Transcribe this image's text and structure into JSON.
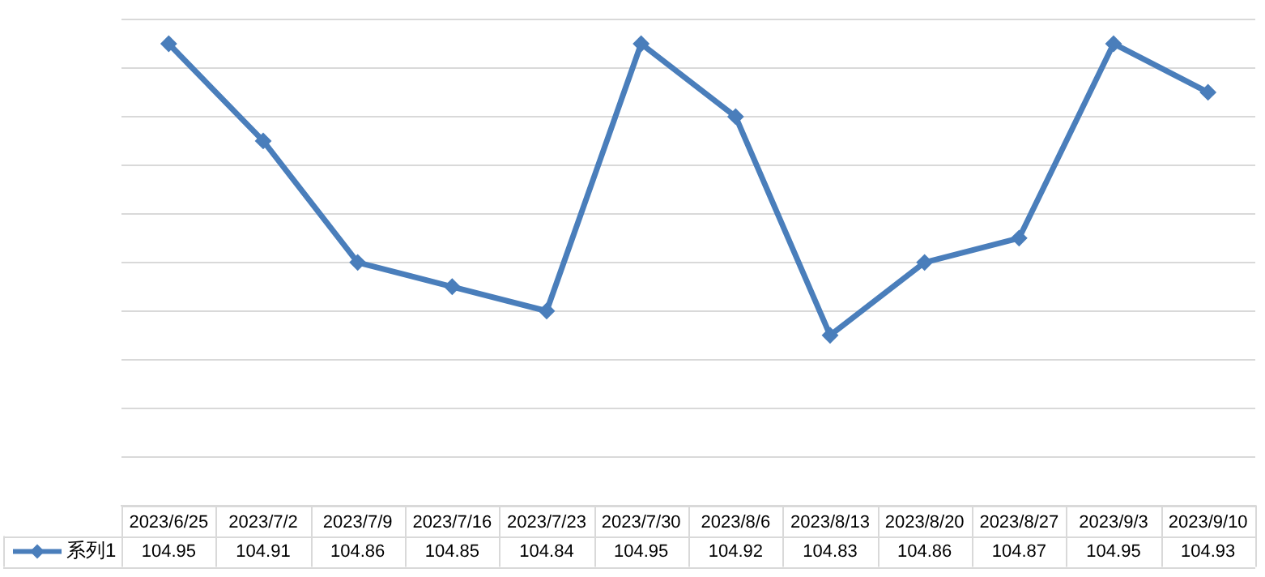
{
  "chart_data": {
    "type": "line",
    "categories": [
      "2023/6/25",
      "2023/7/2",
      "2023/7/9",
      "2023/7/16",
      "2023/7/23",
      "2023/7/30",
      "2023/8/6",
      "2023/8/13",
      "2023/8/20",
      "2023/8/27",
      "2023/9/3",
      "2023/9/10"
    ],
    "series": [
      {
        "name": "系列1",
        "color": "#4a7ebb",
        "values": [
          104.95,
          104.91,
          104.86,
          104.85,
          104.84,
          104.95,
          104.92,
          104.83,
          104.86,
          104.87,
          104.95,
          104.93
        ]
      }
    ],
    "ylim": [
      104.76,
      104.96
    ],
    "yticks": [
      {
        "value": 104.76,
        "label": null
      },
      {
        "value": 104.78,
        "label": null
      },
      {
        "value": 104.8,
        "label": null
      },
      {
        "value": 104.82,
        "label": null
      },
      {
        "value": 104.84,
        "label": null
      },
      {
        "value": 104.86,
        "label": null
      },
      {
        "value": 104.88,
        "label": null
      },
      {
        "value": 104.9,
        "label": null
      },
      {
        "value": 104.92,
        "label": null
      },
      {
        "value": 104.94,
        "label": null
      },
      {
        "value": 104.96,
        "label": null
      }
    ],
    "grid": "y",
    "tick_labels": "x",
    "data_labels": true,
    "legend": "bottom left",
    "marker": "diamond",
    "line_style": "solid"
  }
}
